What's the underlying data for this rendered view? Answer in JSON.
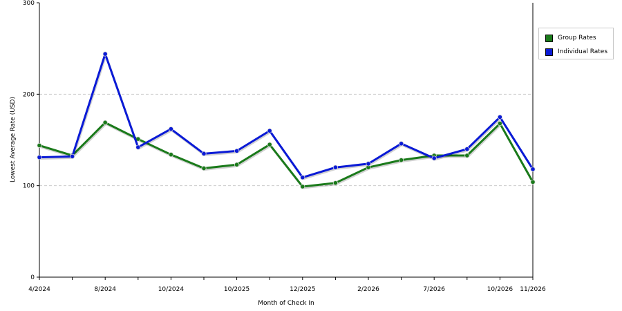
{
  "chart_data": {
    "type": "line",
    "xlabel": "Month of Check In",
    "ylabel": "Lowest Average Rate (USD)",
    "ylim": [
      0,
      300
    ],
    "yticks": [
      0,
      100,
      200,
      300
    ],
    "x": [
      "4/2024",
      "",
      "8/2024",
      "",
      "10/2024",
      "",
      "10/2025",
      "",
      "12/2025",
      "",
      "2/2026",
      "",
      "7/2026",
      "",
      "10/2026",
      "11/2026"
    ],
    "grid": "horizontal dashed",
    "legend_position": "right",
    "series": [
      {
        "name": "Group Rates",
        "color": "#1a7a1a",
        "values": [
          144,
          133,
          169,
          151,
          134,
          119,
          123,
          145,
          99,
          103,
          120,
          128,
          133,
          133,
          168,
          104
        ]
      },
      {
        "name": "Individual Rates",
        "color": "#0a1ad6",
        "values": [
          131,
          132,
          244,
          142,
          162,
          135,
          138,
          160,
          109,
          120,
          124,
          146,
          130,
          140,
          175,
          118
        ]
      }
    ]
  }
}
